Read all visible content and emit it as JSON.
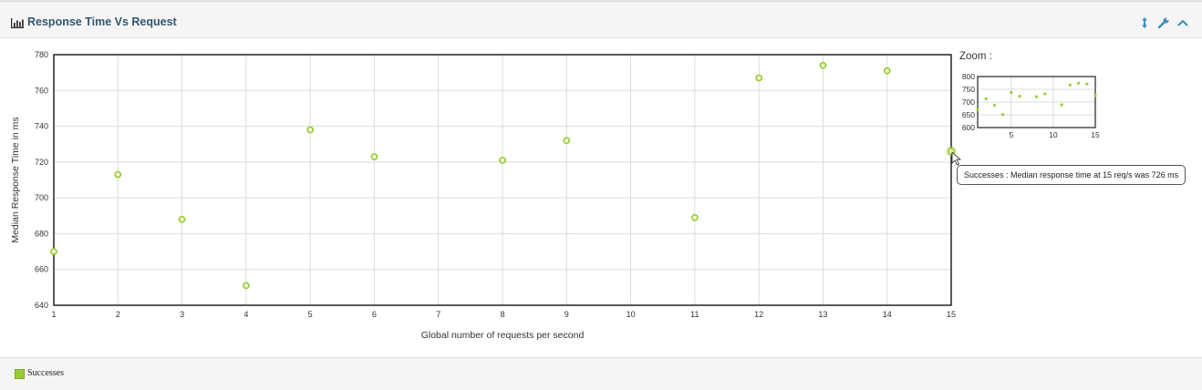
{
  "panel": {
    "title": "Response Time Vs Request"
  },
  "tooltip": {
    "text": "Successes : Median response time at 15 req/s was 726 ms"
  },
  "zoom": {
    "label": "Zoom :"
  },
  "legend": {
    "items": [
      {
        "label": "Successes",
        "color": "#9acd32"
      }
    ]
  },
  "icons": {
    "title": "bar-chart-icon",
    "tools": [
      "resize-vertical-icon",
      "wrench-icon",
      "chevron-up-icon"
    ]
  },
  "colors": {
    "series": "#9acd32",
    "title": "#33576e",
    "tools": "#3c8dbc"
  },
  "chart_data": {
    "type": "scatter",
    "xlabel": "Global number of requests per second",
    "ylabel": "Median Response Time in ms",
    "xlim": [
      1,
      15
    ],
    "ylim": [
      640,
      780
    ],
    "xticks": [
      1,
      2,
      3,
      4,
      5,
      6,
      7,
      8,
      9,
      10,
      11,
      12,
      13,
      14,
      15
    ],
    "yticks": [
      640,
      660,
      680,
      700,
      720,
      740,
      760,
      780
    ],
    "grid": true,
    "legend_position": "bottom-left",
    "series": [
      {
        "name": "Successes",
        "x": [
          1,
          2,
          3,
          4,
          5,
          6,
          8,
          9,
          11,
          12,
          13,
          14,
          15
        ],
        "y": [
          670,
          713,
          688,
          651,
          738,
          723,
          721,
          732,
          689,
          767,
          774,
          771,
          726
        ]
      }
    ],
    "zoom_overview": {
      "xlim": [
        1,
        15
      ],
      "ylim": [
        600,
        800
      ],
      "xticks": [
        5,
        10,
        15
      ],
      "yticks": [
        600,
        650,
        700,
        750,
        800
      ]
    }
  }
}
